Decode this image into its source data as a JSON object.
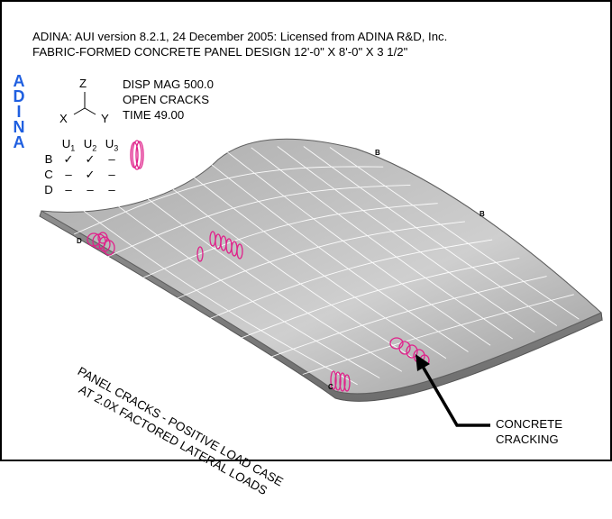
{
  "header": {
    "line1": "ADINA:  AUI version 8.2.1, 24 December 2005: Licensed from ADINA R&D, Inc.",
    "line2": "FABRIC-FORMED CONCRETE PANEL DESIGN 12'-0\" X 8'-0\" X 3 1/2\""
  },
  "logo": {
    "letters": [
      "A",
      "D",
      "I",
      "N",
      "A"
    ],
    "color": "#1f5fe0"
  },
  "info": {
    "disp_mag": "DISP MAG 500.0",
    "result": "OPEN CRACKS",
    "time": "TIME 49.00"
  },
  "axes": {
    "z": "Z",
    "x": "X",
    "y": "Y"
  },
  "bc_table": {
    "headers": [
      "U1",
      "U2",
      "U3"
    ],
    "rows": [
      {
        "label": "B",
        "values": [
          "✓",
          "✓",
          "–"
        ]
      },
      {
        "label": "C",
        "values": [
          "–",
          "✓",
          "–"
        ]
      },
      {
        "label": "D",
        "values": [
          "–",
          "–",
          "–"
        ]
      }
    ]
  },
  "node_labels": [
    "B",
    "B",
    "D",
    "C"
  ],
  "caption": {
    "line1": "PANEL CRACKS - POSITIVE LOAD CASE",
    "line2": "AT 2.0X FACTORED LATERAL LOADS"
  },
  "callout": {
    "line1": "CONCRETE",
    "line2": "CRACKING"
  },
  "colors": {
    "crack": "#e0208a",
    "mesh": "#ffffff",
    "shade_light": "#d8d8d8",
    "shade_dark": "#8c8c8c"
  }
}
